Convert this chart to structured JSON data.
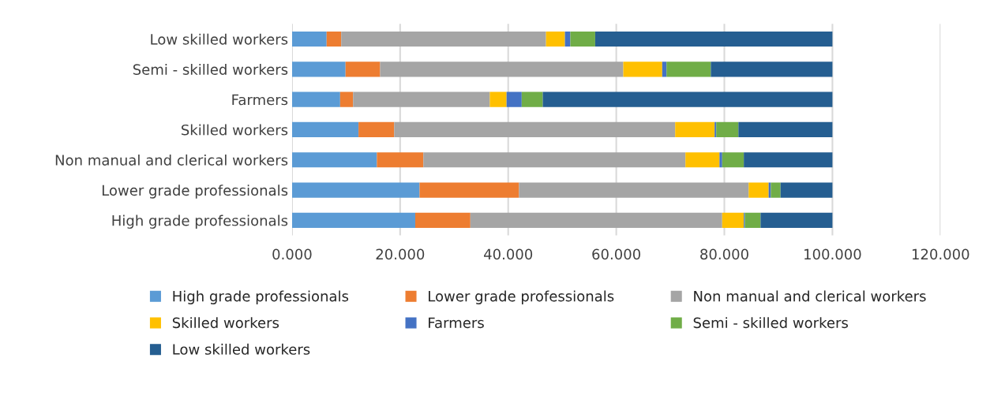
{
  "chart_data": {
    "type": "bar",
    "orientation": "horizontal",
    "stacked": true,
    "categories": [
      "Low skilled workers",
      "Semi - skilled workers",
      "Farmers",
      "Skilled workers",
      "Non manual and clerical workers",
      "Lower grade professionals",
      "High grade professionals"
    ],
    "series": [
      {
        "name": "High grade professionals",
        "color": "#5b9bd5",
        "values": [
          6.4,
          9.9,
          8.9,
          12.3,
          15.7,
          23.6,
          22.8
        ]
      },
      {
        "name": "Lower grade professionals",
        "color": "#ed7d31",
        "values": [
          2.7,
          6.4,
          2.4,
          6.6,
          8.6,
          18.4,
          10.2
        ]
      },
      {
        "name": "Non manual and clerical workers",
        "color": "#a5a5a5",
        "values": [
          37.9,
          45.0,
          25.3,
          52.0,
          48.5,
          42.5,
          46.6
        ]
      },
      {
        "name": "Skilled workers",
        "color": "#ffc000",
        "values": [
          3.5,
          7.2,
          3.1,
          7.3,
          6.3,
          3.7,
          4.0
        ]
      },
      {
        "name": "Farmers",
        "color": "#4472c4",
        "values": [
          1.0,
          0.8,
          2.8,
          0.3,
          0.5,
          0.4,
          0.2
        ]
      },
      {
        "name": "Semi - skilled workers",
        "color": "#70ad47",
        "values": [
          4.6,
          8.2,
          3.9,
          4.1,
          4.0,
          1.8,
          2.9
        ]
      },
      {
        "name": "Low skilled workers",
        "color": "#255e91",
        "values": [
          43.9,
          22.5,
          53.6,
          17.4,
          16.4,
          9.6,
          13.3
        ]
      }
    ],
    "xlim": [
      0,
      120
    ],
    "xticks": [
      {
        "value": 0,
        "label": "0.000"
      },
      {
        "value": 20,
        "label": "20.000"
      },
      {
        "value": 40,
        "label": "40.000"
      },
      {
        "value": 60,
        "label": "60.000"
      },
      {
        "value": 80,
        "label": "80.000"
      },
      {
        "value": 100,
        "label": "100.000"
      },
      {
        "value": 120,
        "label": "120.000"
      }
    ],
    "grid": "x",
    "legend": "bottom"
  }
}
